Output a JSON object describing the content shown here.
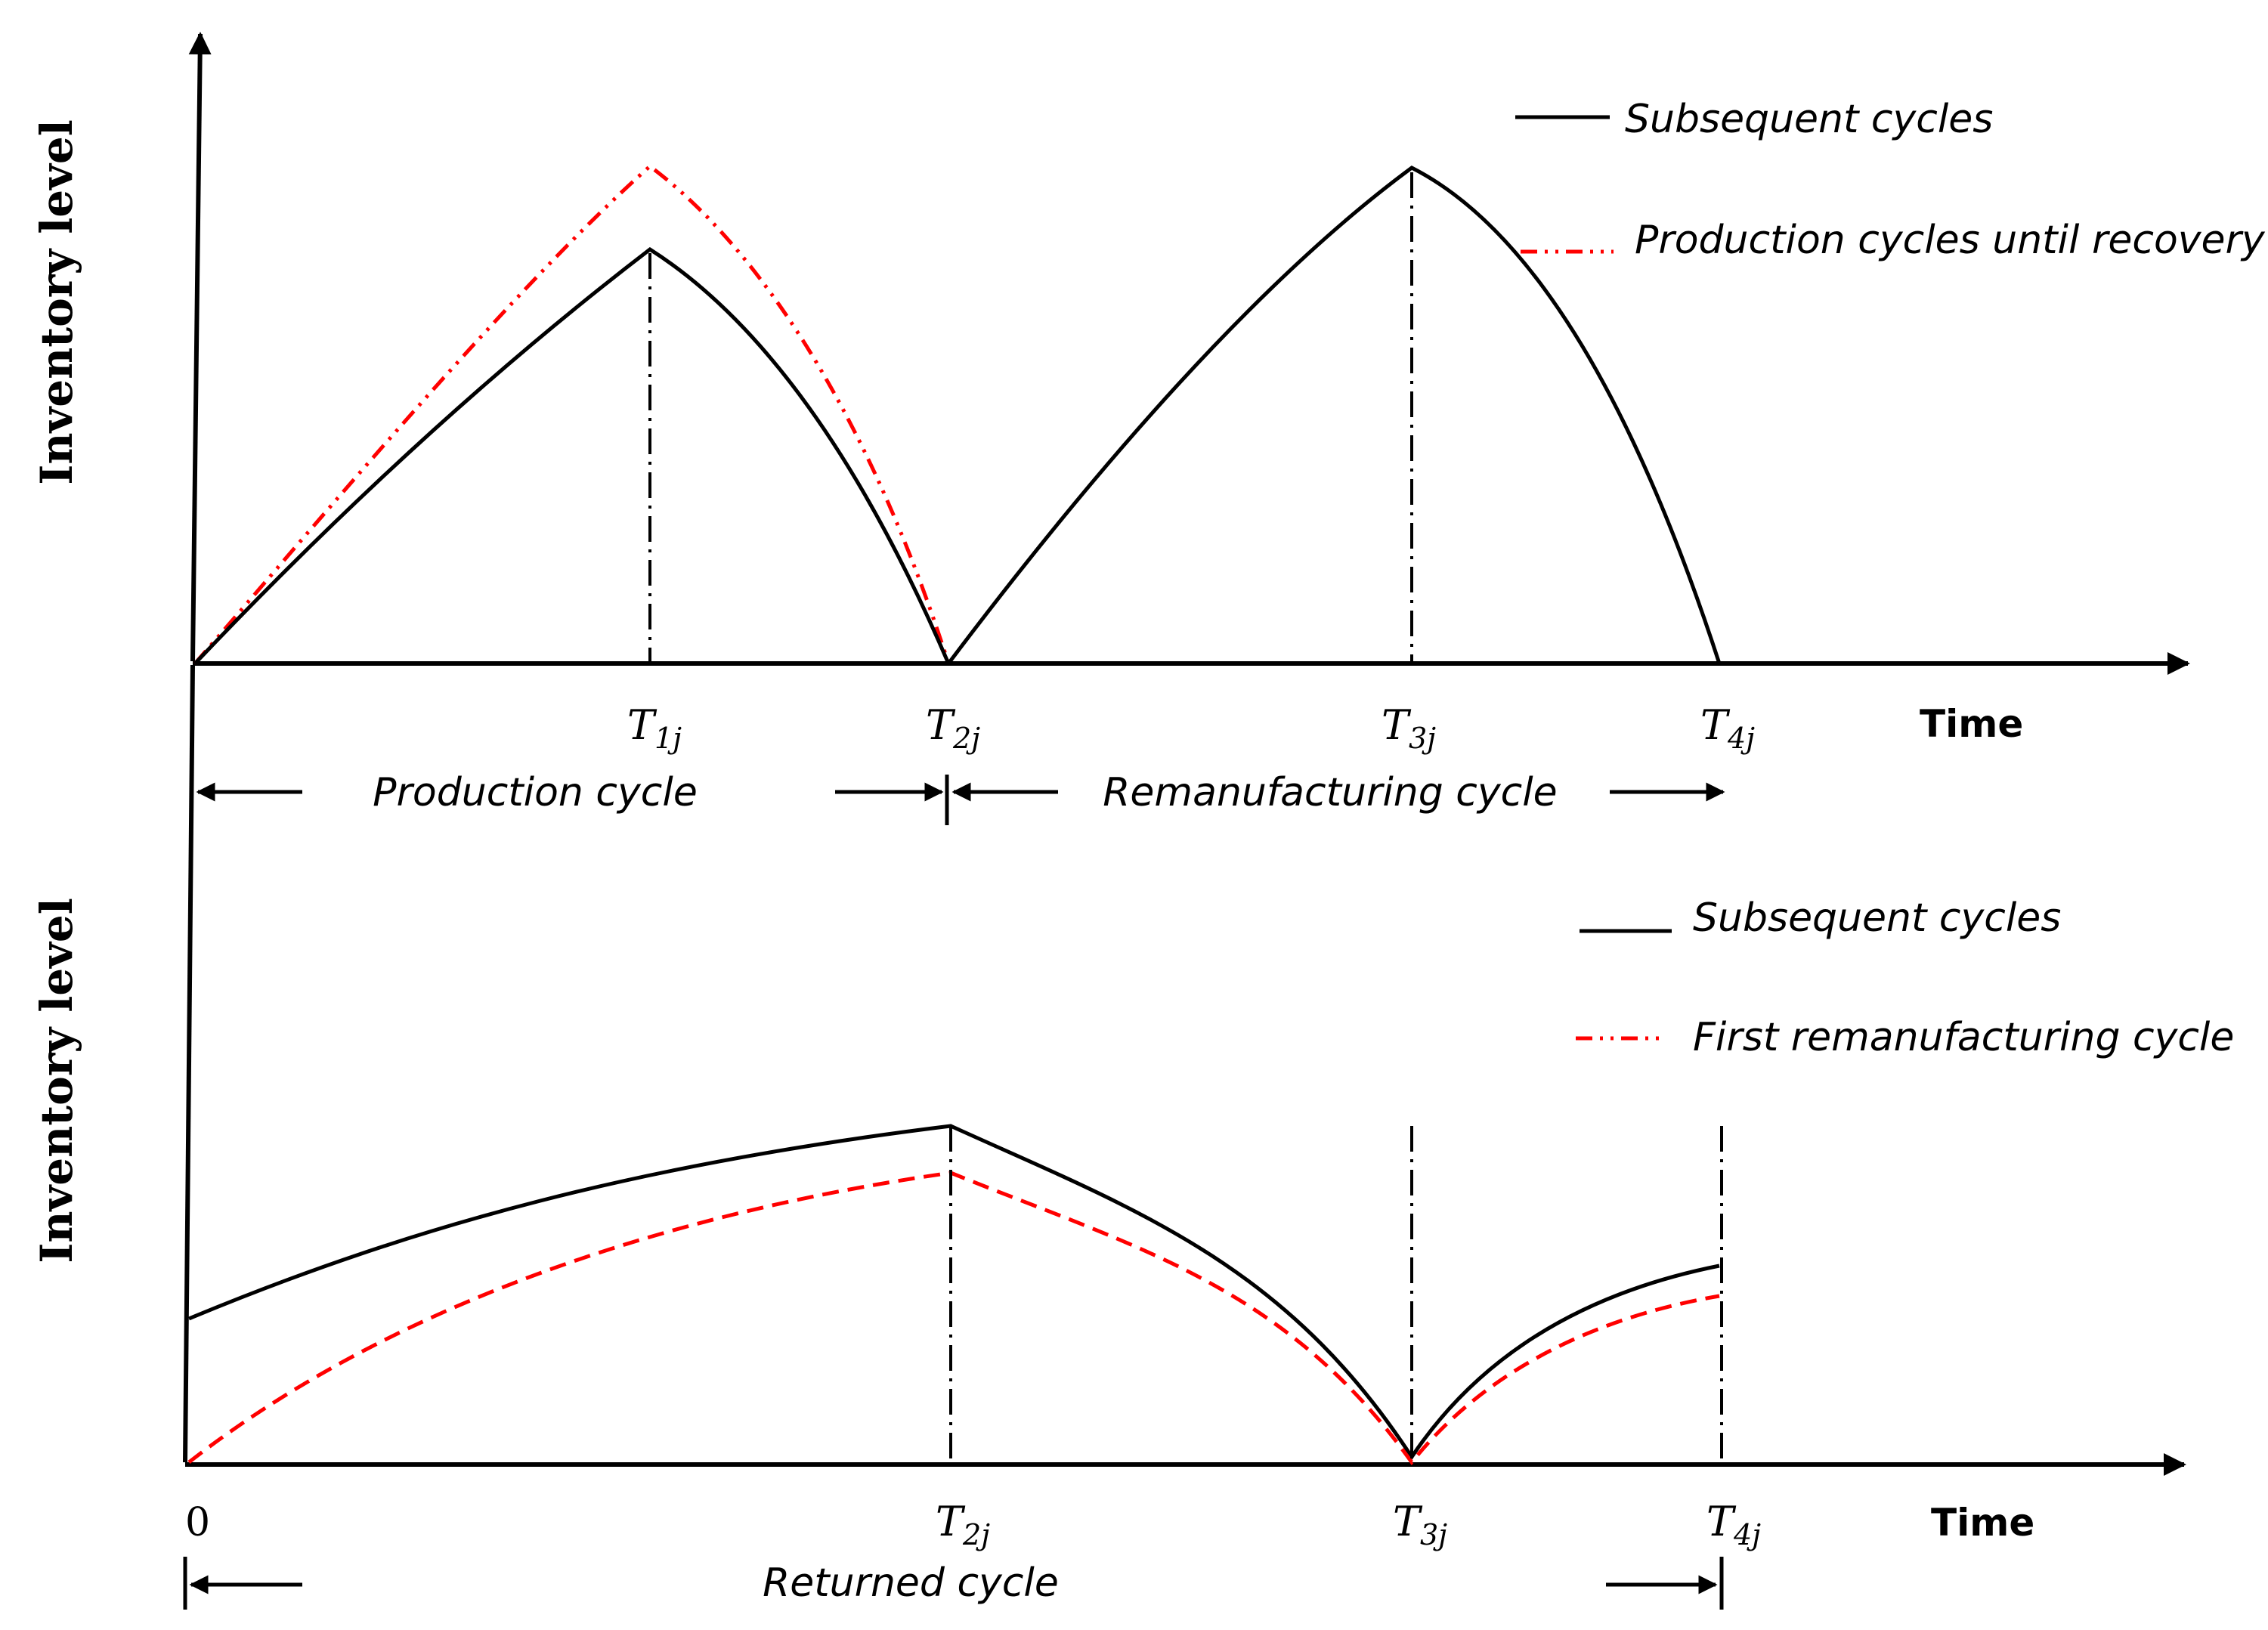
{
  "top": {
    "y_label": "Inventory level",
    "x_label": "Time",
    "legend": [
      {
        "label": "Subsequent cycles",
        "style": "solid",
        "color": "#000000"
      },
      {
        "label": "Production cycles until recovery",
        "style": "dash-dot",
        "color": "#ff0000"
      }
    ],
    "ticks": [
      {
        "main": "T",
        "sub": "1j"
      },
      {
        "main": "T",
        "sub": "2j"
      },
      {
        "main": "T",
        "sub": "3j"
      },
      {
        "main": "T",
        "sub": "4j"
      }
    ],
    "spans": {
      "production": "Production cycle",
      "remanufacturing": "Remanufacturing cycle"
    }
  },
  "bottom": {
    "y_label": "Inventory level",
    "x_label": "Time",
    "origin_label": "0",
    "legend": [
      {
        "label": "Subsequent cycles",
        "style": "solid",
        "color": "#000000"
      },
      {
        "label": "First remanufacturing cycle",
        "style": "dashed",
        "color": "#ff0000"
      }
    ],
    "ticks": [
      {
        "main": "T",
        "sub": "2j"
      },
      {
        "main": "T",
        "sub": "3j"
      },
      {
        "main": "T",
        "sub": "4j"
      }
    ],
    "spans": {
      "returned": "Returned cycle"
    }
  }
}
